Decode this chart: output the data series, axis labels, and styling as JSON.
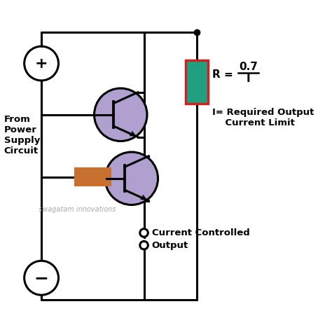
{
  "bg_color": "#ffffff",
  "line_color": "#000000",
  "line_width": 2.2,
  "transistor_fill": "#b0a0d0",
  "transistor_edge": "#000000",
  "resistor1_fill": "#20a080",
  "resistor1_edge": "#cc2222",
  "resistor2_fill": "#c87030",
  "resistor2_edge": "#c87030",
  "label_from": "From\nPower\nSupply\nCircuit",
  "label_output1": "Current Controlled",
  "label_output2": "Output",
  "label_watermark": "swagatam innovations",
  "label_i_formula": "I= Required Output\n    Current Limit"
}
